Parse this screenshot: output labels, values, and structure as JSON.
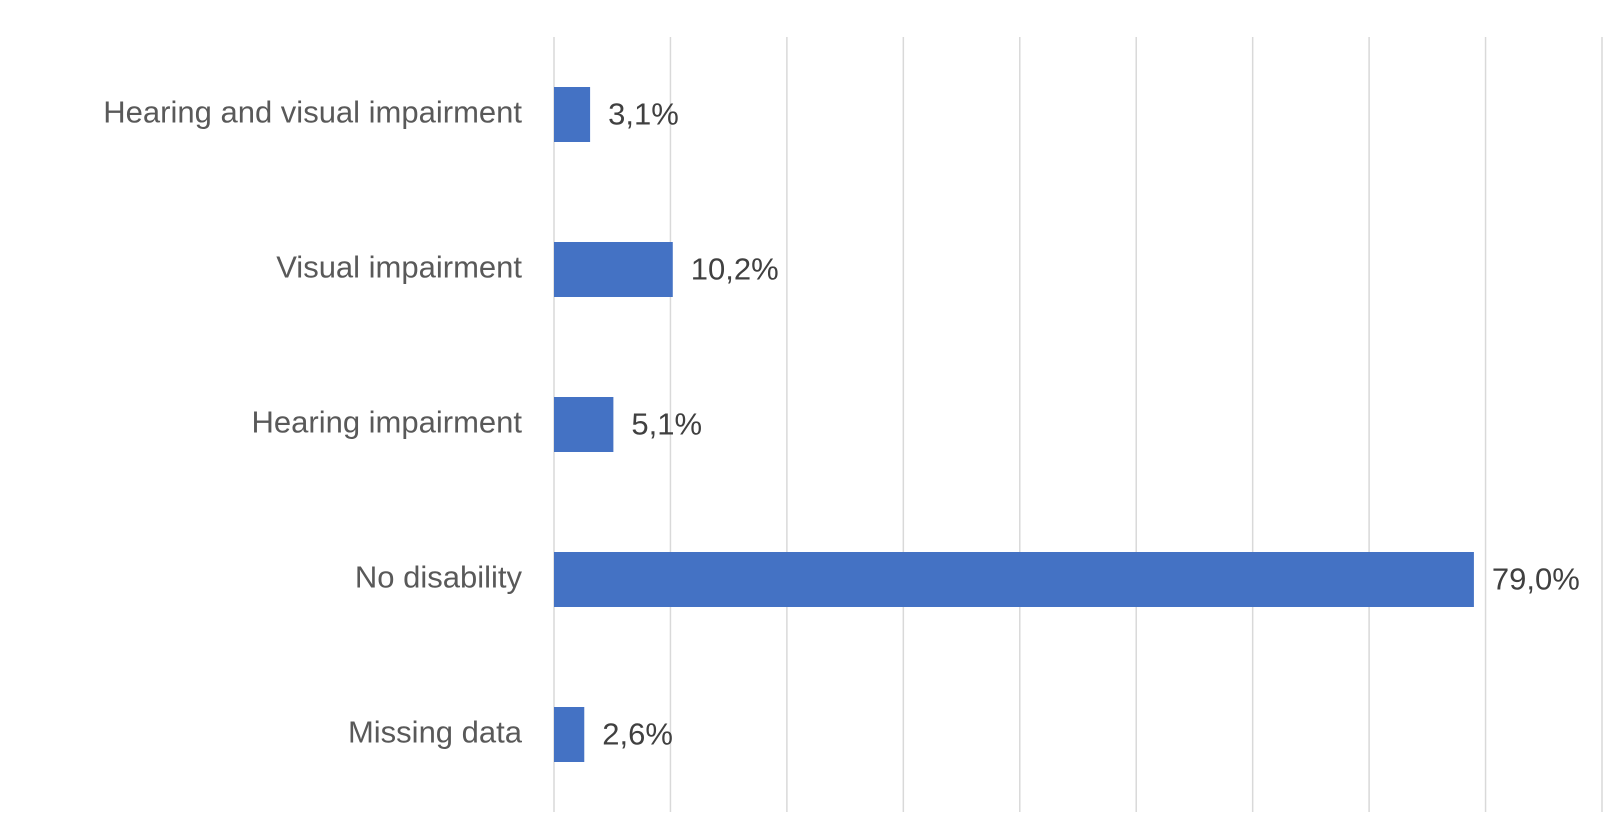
{
  "chart_data": {
    "type": "hbar",
    "categories": [
      "Hearing and visual impairment",
      "Visual impairment",
      "Hearing impairment",
      "No disability",
      "Missing data"
    ],
    "values": [
      3.1,
      10.2,
      5.1,
      79.0,
      2.6
    ],
    "value_labels": [
      "3,1%",
      "10,2%",
      "5,1%",
      "79,0%",
      "2,6%"
    ],
    "color": "#4472c4",
    "xlim": [
      0,
      90
    ],
    "xticks": [
      0,
      10,
      20,
      30,
      40,
      50,
      60,
      70,
      80,
      90
    ],
    "grid": true
  }
}
